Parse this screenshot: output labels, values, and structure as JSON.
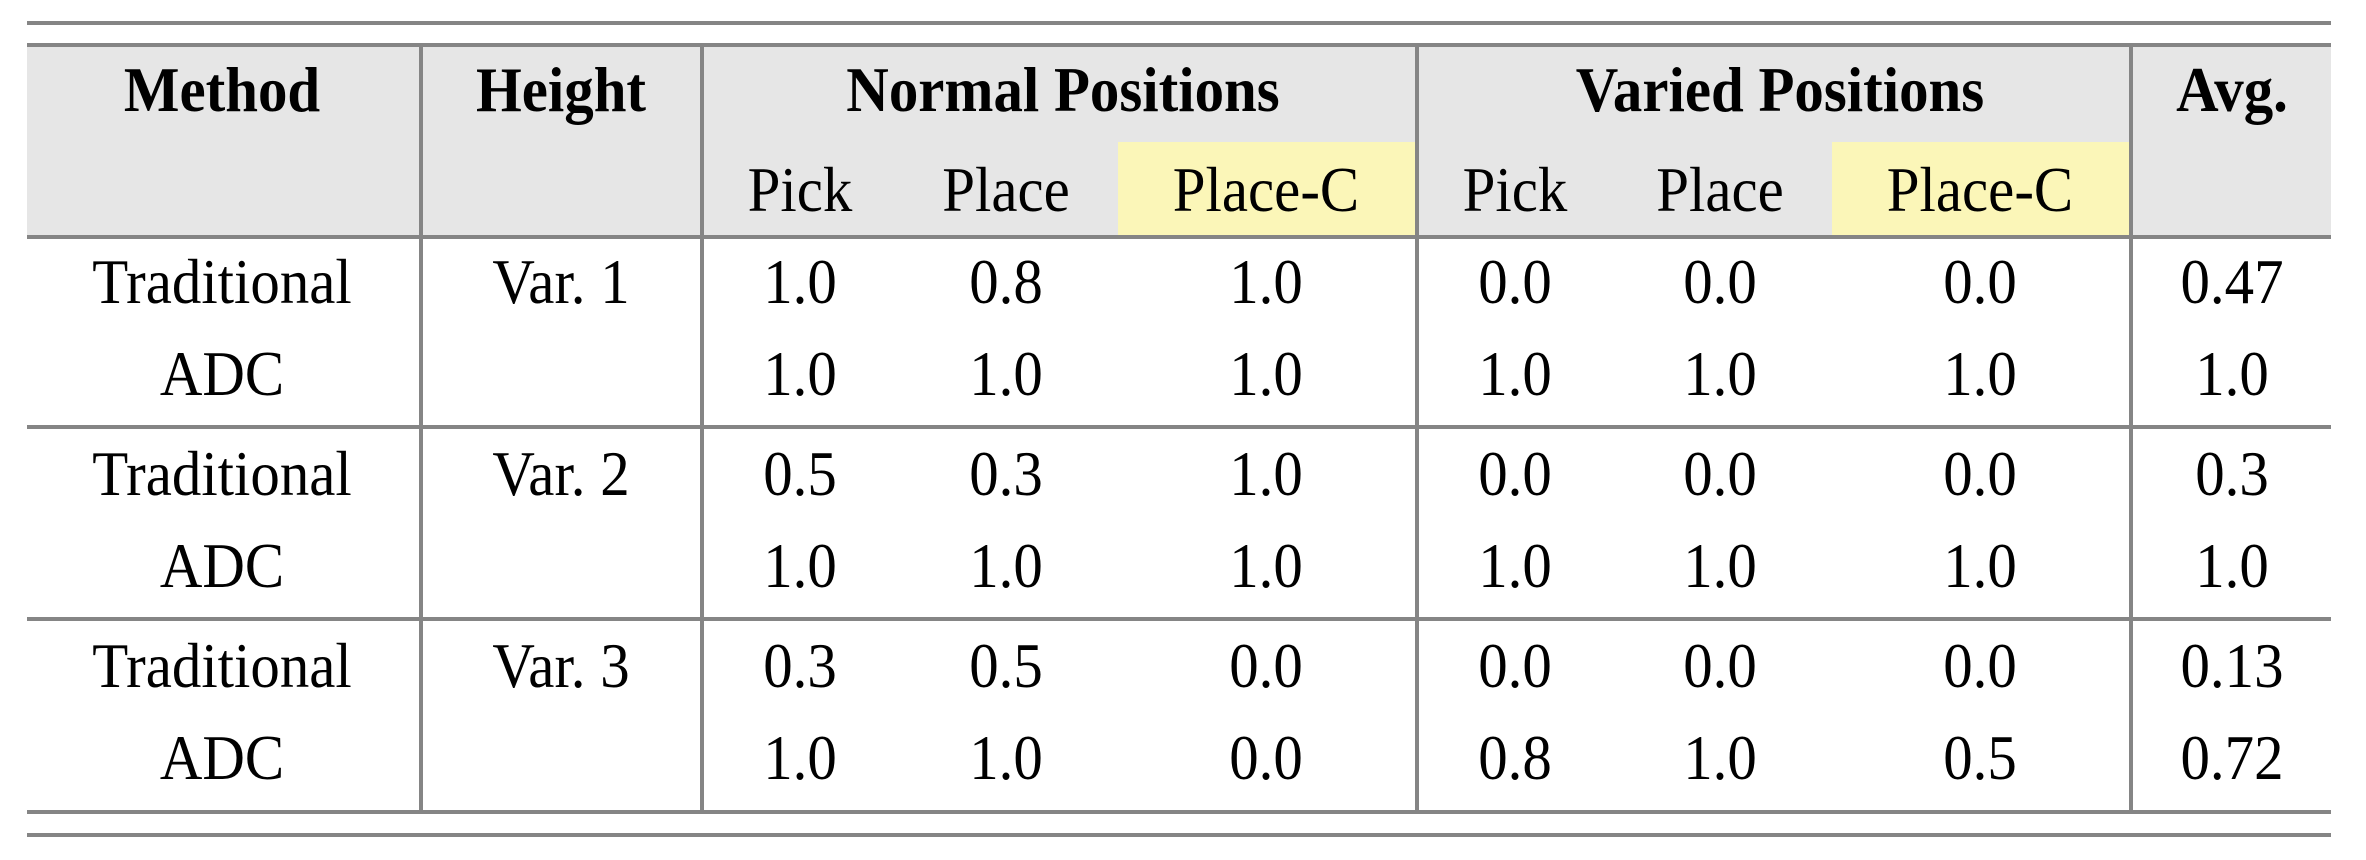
{
  "colors": {
    "header_bg": "#e6e6e6",
    "highlight": "#fbf6b8",
    "rule": "#858585"
  },
  "header": {
    "method": "Method",
    "height": "Height",
    "normal": "Normal Positions",
    "varied": "Varied Positions",
    "avg": "Avg.",
    "sub": [
      "Pick",
      "Place",
      "Place-C",
      "Pick",
      "Place",
      "Place-C"
    ]
  },
  "rows": [
    {
      "method": "Traditional",
      "height": "Var. 1",
      "values": [
        "1.0",
        "0.8",
        "1.0",
        "0.0",
        "0.0",
        "0.0"
      ],
      "avg": "0.47"
    },
    {
      "method": "ADC",
      "height": "",
      "values": [
        "1.0",
        "1.0",
        "1.0",
        "1.0",
        "1.0",
        "1.0"
      ],
      "avg": "1.0"
    },
    {
      "method": "Traditional",
      "height": "Var. 2",
      "values": [
        "0.5",
        "0.3",
        "1.0",
        "0.0",
        "0.0",
        "0.0"
      ],
      "avg": "0.3"
    },
    {
      "method": "ADC",
      "height": "",
      "values": [
        "1.0",
        "1.0",
        "1.0",
        "1.0",
        "1.0",
        "1.0"
      ],
      "avg": "1.0"
    },
    {
      "method": "Traditional",
      "height": "Var. 3",
      "values": [
        "0.3",
        "0.5",
        "0.0",
        "0.0",
        "0.0",
        "0.0"
      ],
      "avg": "0.13"
    },
    {
      "method": "ADC",
      "height": "",
      "values": [
        "1.0",
        "1.0",
        "0.0",
        "0.8",
        "1.0",
        "0.5"
      ],
      "avg": "0.72"
    }
  ]
}
